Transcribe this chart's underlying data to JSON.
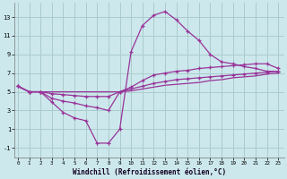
{
  "xlabel": "Windchill (Refroidissement éolien,°C)",
  "background_color": "#cce8ec",
  "grid_color": "#aacccc",
  "line_color": "#993399",
  "x_ticks": [
    0,
    1,
    2,
    3,
    4,
    5,
    6,
    7,
    8,
    9,
    10,
    11,
    12,
    13,
    14,
    15,
    16,
    17,
    18,
    19,
    20,
    21,
    22,
    23
  ],
  "y_ticks": [
    -1,
    1,
    3,
    5,
    7,
    9,
    11,
    13
  ],
  "ylim": [
    -2.0,
    14.5
  ],
  "xlim": [
    -0.3,
    23.5
  ],
  "line1_x": [
    0,
    1,
    2,
    3,
    4,
    5,
    6,
    7,
    8,
    9,
    10,
    11,
    12,
    13,
    14,
    15,
    16,
    17,
    18,
    19,
    20,
    21,
    22,
    23
  ],
  "line1_y": [
    5.6,
    5.0,
    5.0,
    3.9,
    2.8,
    2.2,
    1.9,
    -0.5,
    -0.5,
    1.0,
    9.3,
    12.1,
    13.2,
    13.6,
    12.7,
    11.5,
    10.5,
    9.0,
    8.2,
    8.0,
    7.7,
    7.5,
    7.2,
    7.2
  ],
  "line1_markers": [
    0,
    1,
    2,
    3,
    4,
    5,
    6,
    7,
    8,
    9,
    10,
    11,
    12,
    13,
    14,
    15,
    16,
    17,
    18,
    19,
    20,
    21,
    22,
    23
  ],
  "line2_x": [
    0,
    1,
    2,
    3,
    4,
    5,
    6,
    7,
    8,
    9,
    10,
    11,
    12,
    13,
    14,
    15,
    16,
    17,
    18,
    19,
    20,
    21,
    22,
    23
  ],
  "line2_y": [
    5.6,
    5.0,
    5.0,
    4.3,
    4.0,
    3.8,
    3.5,
    3.3,
    3.0,
    5.0,
    5.5,
    6.2,
    6.8,
    7.0,
    7.2,
    7.3,
    7.5,
    7.6,
    7.7,
    7.8,
    7.9,
    8.0,
    8.0,
    7.5
  ],
  "line3_x": [
    0,
    1,
    2,
    3,
    4,
    5,
    6,
    7,
    8,
    9,
    10,
    11,
    12,
    13,
    14,
    15,
    16,
    17,
    18,
    19,
    20,
    21,
    22,
    23
  ],
  "line3_y": [
    5.6,
    5.0,
    5.0,
    4.8,
    4.7,
    4.6,
    4.5,
    4.5,
    4.5,
    5.0,
    5.3,
    5.6,
    5.9,
    6.1,
    6.3,
    6.4,
    6.5,
    6.6,
    6.7,
    6.8,
    6.9,
    7.0,
    7.1,
    7.2
  ],
  "line4_x": [
    0,
    1,
    2,
    3,
    4,
    5,
    6,
    7,
    8,
    9,
    10,
    11,
    12,
    13,
    14,
    15,
    16,
    17,
    18,
    19,
    20,
    21,
    22,
    23
  ],
  "line4_y": [
    5.6,
    5.0,
    5.0,
    5.0,
    5.0,
    5.0,
    5.0,
    5.0,
    5.0,
    5.0,
    5.1,
    5.3,
    5.5,
    5.7,
    5.8,
    5.9,
    6.0,
    6.2,
    6.3,
    6.5,
    6.6,
    6.7,
    6.9,
    7.0
  ]
}
